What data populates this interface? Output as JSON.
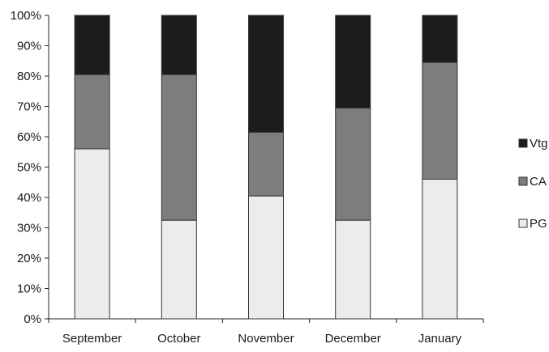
{
  "chart_data": {
    "type": "bar",
    "stacked": true,
    "normalized": true,
    "categories": [
      "September",
      "October",
      "November",
      "December",
      "January"
    ],
    "series": [
      {
        "name": "PG",
        "color": "#ececec",
        "values": [
          56,
          32.5,
          40.5,
          32.5,
          46
        ]
      },
      {
        "name": "CA",
        "color": "#7d7d7d",
        "values": [
          24.5,
          48,
          21,
          37,
          38.5
        ]
      },
      {
        "name": "Vtg",
        "color": "#1c1c1c",
        "values": [
          19.5,
          19.5,
          38.5,
          30.5,
          15.5
        ]
      }
    ],
    "y_tick_labels": [
      "0%",
      "10%",
      "20%",
      "30%",
      "40%",
      "50%",
      "60%",
      "70%",
      "80%",
      "90%",
      "100%"
    ],
    "ylim": [
      0,
      100
    ],
    "grid": false,
    "legend_position": "right",
    "legend_order": [
      "Vtg",
      "CA",
      "PG"
    ],
    "title": "",
    "xlabel": "",
    "ylabel": ""
  }
}
